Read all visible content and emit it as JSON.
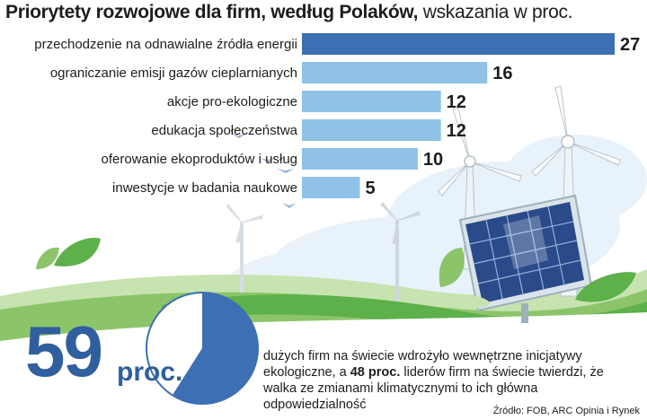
{
  "title": {
    "bold": "Priorytety rozwojowe dla firm, według Polaków,",
    "light": "wskazania w proc."
  },
  "colors": {
    "bar_top": "#3d6fb4",
    "bar_other": "#8fc2e6",
    "accent_blue": "#2f5f9e",
    "green": "#5db04a",
    "panel_blue": "#2a4a8a"
  },
  "chart_data": {
    "type": "bar",
    "orientation": "horizontal",
    "title": "Priorytety rozwojowe dla firm, według Polaków, wskazania w proc.",
    "categories": [
      "przechodzenie na odnawialne źródła energii",
      "ograniczanie emisji gazów cieplarnianych",
      "akcje pro-ekologiczne",
      "edukacja społeczeństwa",
      "oferowanie ekoproduktów i usług",
      "inwestycje w badania naukowe"
    ],
    "values": [
      27,
      16,
      12,
      12,
      10,
      5
    ],
    "value_labels": [
      "27",
      "16",
      "12",
      "12",
      "10",
      "5"
    ]
  },
  "highlight": {
    "number": "59",
    "unit": "proc.",
    "pie_fraction": 0.59,
    "text_before": "dużych firm na świecie wdrożyło wewnętrzne inicjatywy ekologiczne, a ",
    "text_bold": "48 proc.",
    "text_after": " liderów firm na świecie twierdzi, że walka ze zmianami klimatycznymi to ich główna odpowiedzialność"
  },
  "source": "Źródło: FOB, ARC Opinia i Rynek"
}
